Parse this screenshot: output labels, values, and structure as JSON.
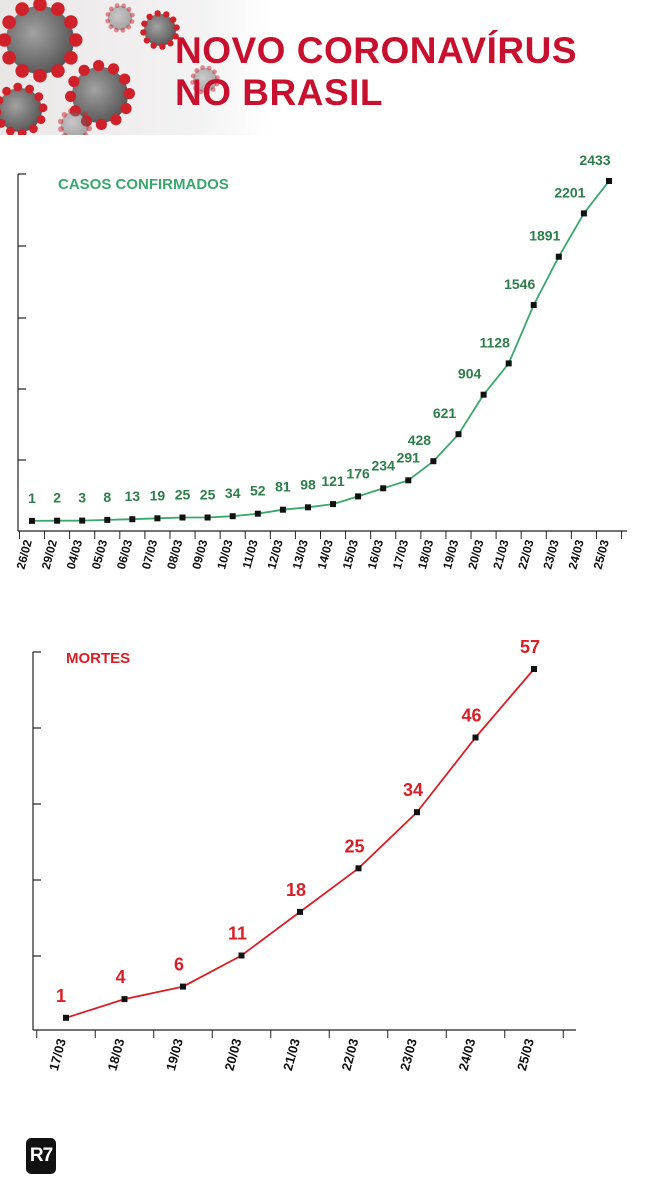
{
  "header": {
    "title_line1": "NOVO CORONAVÍRUS",
    "title_line2": "NO BRASIL"
  },
  "colors": {
    "brand_red": "#c8102e",
    "cases_green": "#3aa86b",
    "cases_label_green": "#2e7d4a",
    "deaths_red": "#d81f26",
    "marker": "#111111"
  },
  "logo": {
    "text": "R7"
  },
  "chart_data": [
    {
      "type": "line",
      "title": "CASOS CONFIRMADOS",
      "categories": [
        "26/02",
        "29/02",
        "04/03",
        "05/03",
        "06/03",
        "07/03",
        "08/03",
        "09/03",
        "10/03",
        "11/03",
        "12/03",
        "13/03",
        "14/03",
        "15/03",
        "16/03",
        "17/03",
        "18/03",
        "19/03",
        "20/03",
        "21/03",
        "22/03",
        "23/03",
        "24/03",
        "25/03"
      ],
      "values": [
        1,
        2,
        3,
        8,
        13,
        19,
        25,
        25,
        34,
        52,
        81,
        98,
        121,
        176,
        234,
        291,
        428,
        621,
        904,
        1128,
        1546,
        1891,
        2201,
        2433
      ],
      "ylim": [
        0,
        2433
      ],
      "grid": false,
      "color": "#3aa86b"
    },
    {
      "type": "line",
      "title": "MORTES",
      "categories": [
        "17/03",
        "18/03",
        "19/03",
        "20/03",
        "21/03",
        "22/03",
        "23/03",
        "24/03",
        "25/03"
      ],
      "values": [
        1,
        4,
        6,
        11,
        18,
        25,
        34,
        46,
        57
      ],
      "ylim": [
        0,
        57
      ],
      "grid": false,
      "color": "#d81f26"
    }
  ]
}
